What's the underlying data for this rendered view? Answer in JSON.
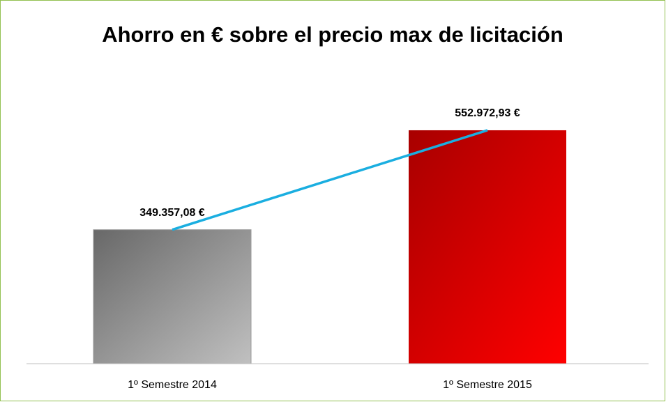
{
  "chart_data": {
    "type": "bar_line",
    "title": "Ahorro en € sobre el precio max de licitación",
    "categories": [
      "1º Semestre 2014",
      "1º Semestre 2015"
    ],
    "values": [
      349357.08,
      552972.93
    ],
    "value_labels": [
      "349.357,08 €",
      "552.972,93 €"
    ],
    "colors": [
      [
        "#686868",
        "#c0c0c0"
      ],
      [
        "#a80000",
        "#ff0000"
      ]
    ],
    "line_color": "#1aaee0",
    "ylim": [
      75000,
      620000
    ]
  }
}
